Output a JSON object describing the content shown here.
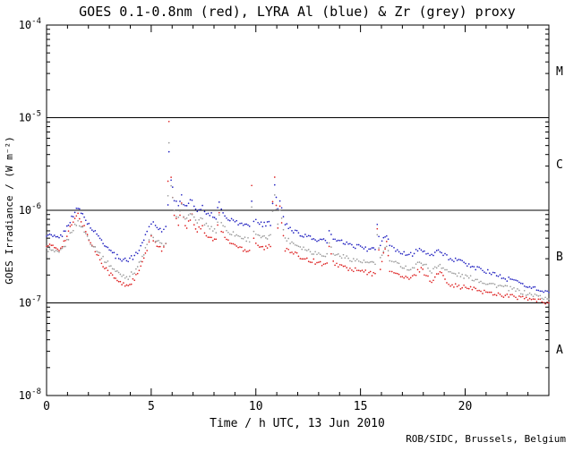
{
  "title": "GOES 0.1-0.8nm (red), LYRA Al (blue) & Zr (grey) proxy",
  "credit": "ROB/SIDC, Brussels, Belgium",
  "chart_data": {
    "type": "scatter",
    "title": "GOES 0.1-0.8nm (red), LYRA Al (blue) & Zr (grey) proxy",
    "xlabel": "Time / h UTC, 13 Jun 2010",
    "ylabel": "GOES Irradiance / (W m⁻²)",
    "x_scale": "linear",
    "y_scale": "log",
    "xlim": [
      0,
      24
    ],
    "ylim": [
      1e-08,
      0.0001
    ],
    "x_major_ticks": [
      0,
      5,
      10,
      15,
      20
    ],
    "x_minor_step": 1,
    "y_tick_exponents": [
      -4,
      -5,
      -6,
      -7,
      -8
    ],
    "hlines": [
      1e-05,
      1e-06,
      1e-07
    ],
    "grid": false,
    "legend_position": "in-title",
    "class_labels": [
      {
        "label": "M",
        "value": 3.16e-05
      },
      {
        "label": "C",
        "value": 3.16e-06
      },
      {
        "label": "B",
        "value": 3.16e-07
      },
      {
        "label": "A",
        "value": 3.16e-08
      }
    ],
    "x": [
      0,
      0.3,
      0.6,
      0.9,
      1.2,
      1.5,
      1.8,
      2.1,
      2.4,
      2.7,
      3.0,
      3.3,
      3.6,
      3.9,
      4.2,
      4.5,
      4.8,
      5.0,
      5.2,
      5.5,
      5.7,
      5.8,
      5.85,
      5.95,
      6.1,
      6.3,
      6.45,
      6.55,
      6.7,
      6.95,
      7.05,
      7.2,
      7.45,
      7.55,
      7.8,
      8.1,
      8.25,
      8.35,
      8.6,
      9.0,
      9.4,
      9.7,
      9.8,
      9.9,
      10.1,
      10.4,
      10.7,
      10.8,
      10.9,
      11.05,
      11.15,
      11.4,
      11.8,
      12.2,
      12.6,
      13.0,
      13.4,
      13.5,
      13.7,
      14.1,
      14.5,
      15.0,
      15.4,
      15.7,
      15.8,
      15.95,
      16.25,
      16.4,
      16.6,
      17.0,
      17.4,
      17.9,
      18.05,
      18.4,
      18.8,
      18.95,
      19.3,
      19.7,
      20.1,
      20.5,
      21.0,
      21.5,
      22.0,
      22.5,
      23.0,
      23.5,
      24.0
    ],
    "series": [
      {
        "name": "GOES 0.1-0.8nm",
        "color": "#dd2020",
        "y": [
          4.3e-07,
          4e-07,
          3.8e-07,
          4.8e-07,
          7e-07,
          9e-07,
          6.5e-07,
          4.5e-07,
          3.4e-07,
          2.6e-07,
          2.1e-07,
          1.8e-07,
          1.6e-07,
          1.55e-07,
          1.8e-07,
          2.4e-07,
          3.8e-07,
          5e-07,
          4.5e-07,
          3.8e-07,
          4.2e-07,
          2e-06,
          9.2e-06,
          2.2e-06,
          8.5e-07,
          7e-07,
          1.2e-06,
          8e-07,
          6.5e-07,
          9e-07,
          7e-07,
          6e-07,
          7e-07,
          5.8e-07,
          5e-07,
          4.8e-07,
          9.5e-07,
          6e-07,
          4.8e-07,
          4.2e-07,
          3.8e-07,
          3.7e-07,
          1.9e-06,
          5e-07,
          4.2e-07,
          3.9e-07,
          4.1e-07,
          1.2e-06,
          2.2e-06,
          6.5e-07,
          1.1e-06,
          3.8e-07,
          3.4e-07,
          3.1e-07,
          2.9e-07,
          2.7e-07,
          2.6e-07,
          3.9e-07,
          2.7e-07,
          2.5e-07,
          2.3e-07,
          2.2e-07,
          2.1e-07,
          2e-07,
          6.5e-07,
          2.4e-07,
          4.5e-07,
          2.3e-07,
          2.1e-07,
          1.9e-07,
          1.8e-07,
          2.4e-07,
          2.1e-07,
          1.7e-07,
          2.2e-07,
          1.9e-07,
          1.6e-07,
          1.5e-07,
          1.45e-07,
          1.4e-07,
          1.3e-07,
          1.25e-07,
          1.2e-07,
          1.15e-07,
          1.1e-07,
          1.05e-07,
          1e-07
        ]
      },
      {
        "name": "LYRA Zr proxy",
        "color": "#9a9a9a",
        "y": [
          3.8e-07,
          3.6e-07,
          3.4e-07,
          4.2e-07,
          6e-07,
          7.5e-07,
          6e-07,
          4.5e-07,
          3.8e-07,
          3e-07,
          2.6e-07,
          2.2e-07,
          2e-07,
          1.9e-07,
          2.2e-07,
          2.8e-07,
          4.2e-07,
          5.2e-07,
          4.8e-07,
          4.2e-07,
          4.6e-07,
          1.4e-06,
          5.5e-06,
          1.8e-06,
          9.5e-07,
          8e-07,
          1.1e-06,
          9e-07,
          8e-07,
          9.5e-07,
          8.2e-07,
          7.5e-07,
          8e-07,
          7.2e-07,
          6.5e-07,
          6e-07,
          9e-07,
          7.5e-07,
          6e-07,
          5.5e-07,
          5e-07,
          4.8e-07,
          1.1e-06,
          6e-07,
          5.2e-07,
          5e-07,
          5.2e-07,
          1e-06,
          1.5e-06,
          7.5e-07,
          1e-06,
          5e-07,
          4.4e-07,
          4e-07,
          3.6e-07,
          3.4e-07,
          3.3e-07,
          4.5e-07,
          3.4e-07,
          3.2e-07,
          3e-07,
          2.8e-07,
          2.7e-07,
          2.6e-07,
          5.5e-07,
          3e-07,
          4.2e-07,
          2.9e-07,
          2.7e-07,
          2.5e-07,
          2.3e-07,
          2.8e-07,
          2.6e-07,
          2.2e-07,
          2.6e-07,
          2.4e-07,
          2.1e-07,
          2e-07,
          1.9e-07,
          1.8e-07,
          1.65e-07,
          1.55e-07,
          1.45e-07,
          1.35e-07,
          1.25e-07,
          1.18e-07,
          1.1e-07
        ]
      },
      {
        "name": "LYRA Al proxy",
        "color": "#2020c0",
        "y": [
          5.5e-07,
          5.2e-07,
          5e-07,
          6e-07,
          8.5e-07,
          1.05e-06,
          8.5e-07,
          6.5e-07,
          5.5e-07,
          4.5e-07,
          3.8e-07,
          3.2e-07,
          3e-07,
          2.9e-07,
          3.2e-07,
          4e-07,
          6e-07,
          7.5e-07,
          7e-07,
          6e-07,
          6.5e-07,
          1.2e-06,
          4.5e-06,
          2.2e-06,
          1.3e-06,
          1.1e-06,
          1.5e-06,
          1.2e-06,
          1.1e-06,
          1.3e-06,
          1.1e-06,
          1e-06,
          1.1e-06,
          1e-06,
          9e-07,
          8.5e-07,
          1.2e-06,
          1e-06,
          8.5e-07,
          7.5e-07,
          7e-07,
          6.8e-07,
          1.3e-06,
          8e-07,
          7.2e-07,
          7e-07,
          7.2e-07,
          1.2e-06,
          1.8e-06,
          1e-06,
          1.3e-06,
          7e-07,
          6e-07,
          5.5e-07,
          5e-07,
          4.8e-07,
          4.6e-07,
          6e-07,
          4.8e-07,
          4.5e-07,
          4.2e-07,
          4e-07,
          3.8e-07,
          3.7e-07,
          7e-07,
          4.2e-07,
          5.5e-07,
          4e-07,
          3.8e-07,
          3.5e-07,
          3.3e-07,
          3.9e-07,
          3.6e-07,
          3.2e-07,
          3.7e-07,
          3.4e-07,
          3e-07,
          2.8e-07,
          2.6e-07,
          2.4e-07,
          2.2e-07,
          2e-07,
          1.8e-07,
          1.7e-07,
          1.5e-07,
          1.4e-07,
          1.3e-07
        ]
      }
    ]
  }
}
